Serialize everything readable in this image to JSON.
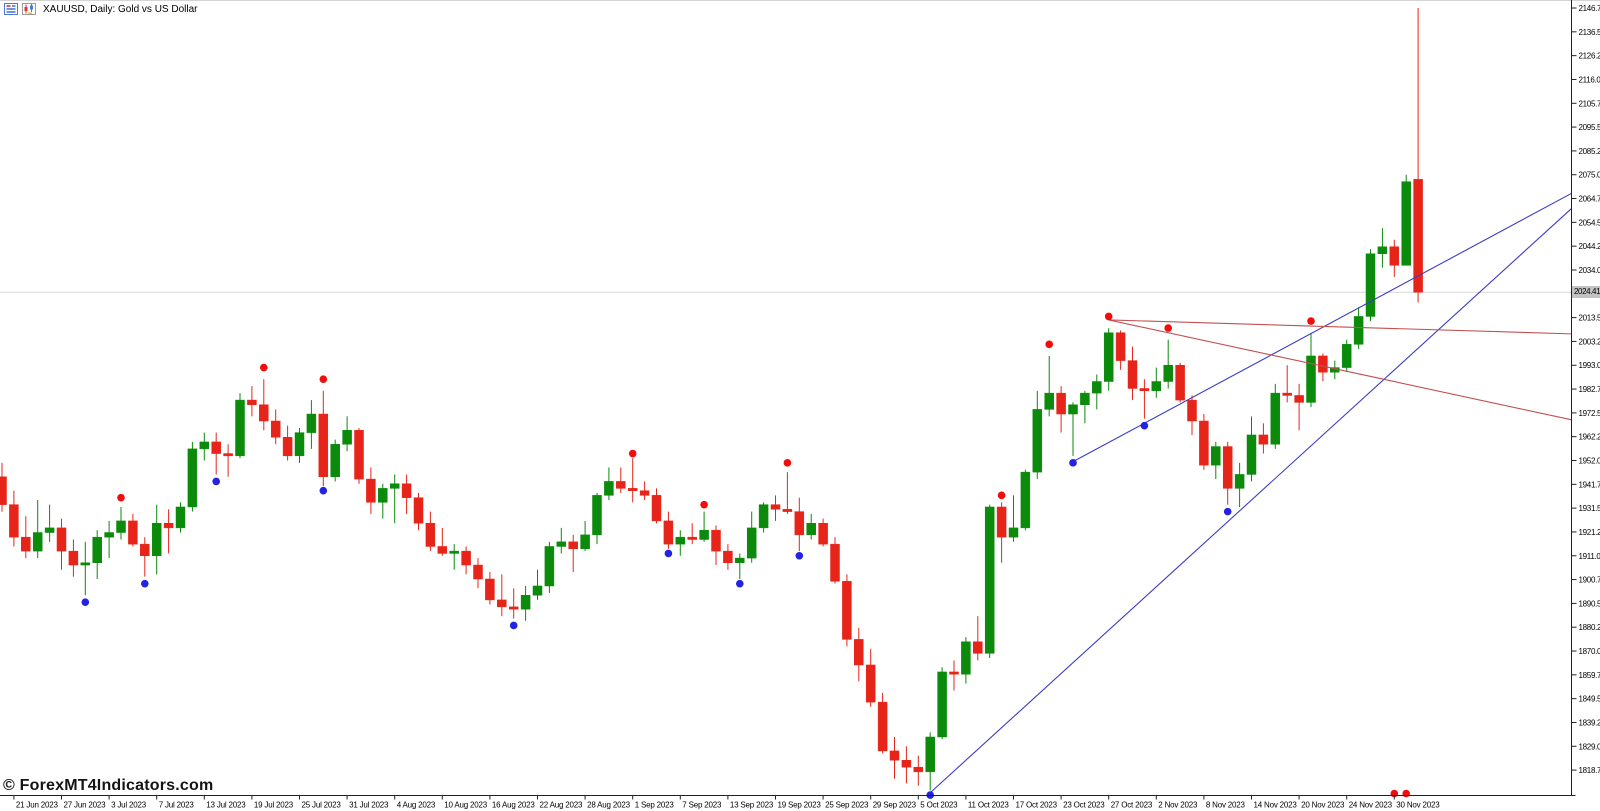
{
  "header": {
    "title": "XAUUSD, Daily:  Gold vs US Dollar"
  },
  "watermark": "© ForexMT4Indicators.com",
  "colors": {
    "bull": "#0b8a0b",
    "bear": "#e62419",
    "fractal_up_dot": "#f20c0c",
    "fractal_down_dot": "#2323e0",
    "trend_blue": "#3c3cc6",
    "trend_red": "#c25050",
    "bid_line": "#d7d7d7",
    "price_tag_bg": "#c3c3c3",
    "axis_line": "#222222",
    "top_border": "#d4d4d4"
  },
  "axes": {
    "current_price": "2024.41",
    "price_step": 10.25,
    "price_range_low": "1818.75",
    "price_range_high": "2146.75",
    "price_ticks": [
      "2146.75",
      "2136.50",
      "2126.25",
      "2116.00",
      "2105.75",
      "2095.50",
      "2085.25",
      "2075.00",
      "2064.75",
      "2054.50",
      "2044.25",
      "2034.00",
      "2013.50",
      "2003.25",
      "1993.00",
      "1982.75",
      "1972.50",
      "1962.25",
      "1952.00",
      "1941.75",
      "1931.50",
      "1921.25",
      "1911.00",
      "1900.75",
      "1890.50",
      "1880.25",
      "1870.00",
      "1859.75",
      "1849.50",
      "1839.25",
      "1829.00",
      "1818.75"
    ],
    "date_labels": [
      "21 Jun 2023",
      "27 Jun 2023",
      "3 Jul 2023",
      "7 Jul 2023",
      "13 Jul 2023",
      "19 Jul 2023",
      "25 Jul 2023",
      "31 Jul 2023",
      "4 Aug 2023",
      "10 Aug 2023",
      "16 Aug 2023",
      "22 Aug 2023",
      "28 Aug 2023",
      "1 Sep 2023",
      "7 Sep 2023",
      "13 Sep 2023",
      "19 Sep 2023",
      "25 Sep 2023",
      "29 Sep 2023",
      "5 Oct 2023",
      "11 Oct 2023",
      "17 Oct 2023",
      "23 Oct 2023",
      "27 Oct 2023",
      "2 Nov 2023",
      "8 Nov 2023",
      "14 Nov 2023",
      "20 Nov 2023",
      "24 Nov 2023",
      "30 Nov 2023"
    ]
  },
  "chart_data": {
    "type": "candlestick",
    "symbol": "XAUUSD",
    "timeframe": "Daily",
    "description": "Gold vs US Dollar",
    "grid": "off",
    "bid_price": 2024.41,
    "candles": [
      [
        "20 Jun 2023",
        1945,
        1951,
        1930,
        1933
      ],
      [
        "21 Jun 2023",
        1933,
        1939,
        1915,
        1919
      ],
      [
        "22 Jun 2023",
        1919,
        1928,
        1910,
        1913
      ],
      [
        "23 Jun 2023",
        1913,
        1935,
        1910,
        1921
      ],
      [
        "26 Jun 2023",
        1921,
        1933,
        1917,
        1923
      ],
      [
        "27 Jun 2023",
        1923,
        1927,
        1905,
        1913
      ],
      [
        "28 Jun 2023",
        1913,
        1918,
        1902,
        1907
      ],
      [
        "29 Jun 2023",
        1907,
        1917,
        1894,
        1908
      ],
      [
        "30 Jun 2023",
        1908,
        1922,
        1901,
        1919
      ],
      [
        "3 Jul 2023",
        1919,
        1926,
        1910,
        1921
      ],
      [
        "4 Jul 2023",
        1921,
        1932,
        1918,
        1926
      ],
      [
        "5 Jul 2023",
        1926,
        1929,
        1915,
        1916
      ],
      [
        "6 Jul 2023",
        1916,
        1919,
        1902,
        1911
      ],
      [
        "7 Jul 2023",
        1911,
        1933,
        1903,
        1925
      ],
      [
        "10 Jul 2023",
        1925,
        1931,
        1912,
        1923
      ],
      [
        "11 Jul 2023",
        1923,
        1934,
        1921,
        1932
      ],
      [
        "12 Jul 2023",
        1932,
        1960,
        1930,
        1957
      ],
      [
        "13 Jul 2023",
        1957,
        1964,
        1952,
        1960
      ],
      [
        "14 Jul 2023",
        1960,
        1964,
        1946,
        1955
      ],
      [
        "17 Jul 2023",
        1955,
        1959,
        1945,
        1954
      ],
      [
        "18 Jul 2023",
        1954,
        1981,
        1953,
        1978
      ],
      [
        "19 Jul 2023",
        1978,
        1984,
        1971,
        1976
      ],
      [
        "20 Jul 2023",
        1976,
        1987,
        1965,
        1969
      ],
      [
        "21 Jul 2023",
        1969,
        1974,
        1959,
        1962
      ],
      [
        "24 Jul 2023",
        1962,
        1967,
        1952,
        1954
      ],
      [
        "25 Jul 2023",
        1954,
        1966,
        1951,
        1964
      ],
      [
        "26 Jul 2023",
        1964,
        1978,
        1957,
        1972
      ],
      [
        "27 Jul 2023",
        1972,
        1982,
        1941,
        1945
      ],
      [
        "28 Jul 2023",
        1945,
        1961,
        1943,
        1959
      ],
      [
        "31 Jul 2023",
        1959,
        1971,
        1956,
        1965
      ],
      [
        "1 Aug 2023",
        1965,
        1966,
        1942,
        1944
      ],
      [
        "2 Aug 2023",
        1944,
        1949,
        1929,
        1934
      ],
      [
        "3 Aug 2023",
        1934,
        1942,
        1927,
        1940
      ],
      [
        "4 Aug 2023",
        1940,
        1946,
        1925,
        1942
      ],
      [
        "7 Aug 2023",
        1942,
        1946,
        1929,
        1936
      ],
      [
        "8 Aug 2023",
        1936,
        1938,
        1922,
        1925
      ],
      [
        "9 Aug 2023",
        1925,
        1930,
        1913,
        1915
      ],
      [
        "10 Aug 2023",
        1915,
        1923,
        1911,
        1912
      ],
      [
        "11 Aug 2023",
        1912,
        1916,
        1905,
        1913
      ],
      [
        "14 Aug 2023",
        1913,
        1915,
        1903,
        1907
      ],
      [
        "15 Aug 2023",
        1907,
        1910,
        1897,
        1901
      ],
      [
        "16 Aug 2023",
        1901,
        1904,
        1890,
        1892
      ],
      [
        "17 Aug 2023",
        1892,
        1903,
        1885,
        1889
      ],
      [
        "18 Aug 2023",
        1889,
        1897,
        1884,
        1888
      ],
      [
        "21 Aug 2023",
        1888,
        1898,
        1883,
        1894
      ],
      [
        "22 Aug 2023",
        1894,
        1905,
        1892,
        1898
      ],
      [
        "23 Aug 2023",
        1898,
        1917,
        1895,
        1915
      ],
      [
        "24 Aug 2023",
        1915,
        1923,
        1912,
        1917
      ],
      [
        "25 Aug 2023",
        1917,
        1920,
        1904,
        1914
      ],
      [
        "28 Aug 2023",
        1914,
        1926,
        1913,
        1920
      ],
      [
        "29 Aug 2023",
        1920,
        1938,
        1916,
        1937
      ],
      [
        "30 Aug 2023",
        1937,
        1949,
        1935,
        1943
      ],
      [
        "31 Aug 2023",
        1943,
        1949,
        1938,
        1940
      ],
      [
        "1 Sep 2023",
        1940,
        1953,
        1934,
        1939
      ],
      [
        "4 Sep 2023",
        1939,
        1943,
        1935,
        1937
      ],
      [
        "5 Sep 2023",
        1937,
        1940,
        1925,
        1926
      ],
      [
        "6 Sep 2023",
        1926,
        1930,
        1914,
        1916
      ],
      [
        "7 Sep 2023",
        1916,
        1922,
        1911,
        1919
      ],
      [
        "8 Sep 2023",
        1919,
        1925,
        1916,
        1918
      ],
      [
        "11 Sep 2023",
        1918,
        1930,
        1917,
        1922
      ],
      [
        "12 Sep 2023",
        1922,
        1924,
        1907,
        1913
      ],
      [
        "13 Sep 2023",
        1913,
        1916,
        1905,
        1908
      ],
      [
        "14 Sep 2023",
        1908,
        1912,
        1901,
        1910
      ],
      [
        "15 Sep 2023",
        1910,
        1930,
        1908,
        1923
      ],
      [
        "18 Sep 2023",
        1923,
        1934,
        1921,
        1933
      ],
      [
        "19 Sep 2023",
        1933,
        1937,
        1926,
        1931
      ],
      [
        "20 Sep 2023",
        1931,
        1947,
        1929,
        1930
      ],
      [
        "21 Sep 2023",
        1930,
        1936,
        1913,
        1920
      ],
      [
        "22 Sep 2023",
        1920,
        1929,
        1918,
        1925
      ],
      [
        "25 Sep 2023",
        1925,
        1927,
        1915,
        1916
      ],
      [
        "26 Sep 2023",
        1916,
        1919,
        1899,
        1900
      ],
      [
        "27 Sep 2023",
        1900,
        1903,
        1872,
        1875
      ],
      [
        "28 Sep 2023",
        1875,
        1880,
        1857,
        1864
      ],
      [
        "29 Sep 2023",
        1864,
        1871,
        1846,
        1848
      ],
      [
        "2 Oct 2023",
        1848,
        1852,
        1826,
        1827
      ],
      [
        "3 Oct 2023",
        1827,
        1833,
        1815,
        1823
      ],
      [
        "4 Oct 2023",
        1823,
        1829,
        1813,
        1820
      ],
      [
        "5 Oct 2023",
        1820,
        1825,
        1812,
        1818
      ],
      [
        "6 Oct 2023",
        1818,
        1835,
        1810,
        1833
      ],
      [
        "9 Oct 2023",
        1833,
        1863,
        1832,
        1861
      ],
      [
        "10 Oct 2023",
        1861,
        1866,
        1853,
        1860
      ],
      [
        "11 Oct 2023",
        1860,
        1876,
        1856,
        1874
      ],
      [
        "12 Oct 2023",
        1874,
        1885,
        1866,
        1869
      ],
      [
        "13 Oct 2023",
        1869,
        1933,
        1867,
        1932
      ],
      [
        "16 Oct 2023",
        1932,
        1934,
        1908,
        1919
      ],
      [
        "17 Oct 2023",
        1919,
        1937,
        1917,
        1923
      ],
      [
        "18 Oct 2023",
        1923,
        1948,
        1922,
        1947
      ],
      [
        "19 Oct 2023",
        1947,
        1982,
        1944,
        1974
      ],
      [
        "20 Oct 2023",
        1974,
        1997,
        1971,
        1981
      ],
      [
        "23 Oct 2023",
        1981,
        1984,
        1964,
        1972
      ],
      [
        "24 Oct 2023",
        1972,
        1977,
        1954,
        1976
      ],
      [
        "25 Oct 2023",
        1976,
        1982,
        1968,
        1981
      ],
      [
        "26 Oct 2023",
        1981,
        1989,
        1974,
        1986
      ],
      [
        "27 Oct 2023",
        1986,
        2009,
        1982,
        2007
      ],
      [
        "30 Oct 2023",
        2007,
        2008,
        1991,
        1995
      ],
      [
        "31 Oct 2023",
        1995,
        2001,
        1978,
        1983
      ],
      [
        "1 Nov 2023",
        1983,
        1987,
        1970,
        1982
      ],
      [
        "2 Nov 2023",
        1982,
        1992,
        1979,
        1986
      ],
      [
        "3 Nov 2023",
        1986,
        2004,
        1983,
        1993
      ],
      [
        "6 Nov 2023",
        1993,
        1994,
        1977,
        1978
      ],
      [
        "7 Nov 2023",
        1978,
        1980,
        1963,
        1969
      ],
      [
        "8 Nov 2023",
        1969,
        1972,
        1948,
        1950
      ],
      [
        "9 Nov 2023",
        1950,
        1960,
        1944,
        1958
      ],
      [
        "10 Nov 2023",
        1958,
        1960,
        1933,
        1940
      ],
      [
        "13 Nov 2023",
        1940,
        1951,
        1932,
        1946
      ],
      [
        "14 Nov 2023",
        1946,
        1971,
        1943,
        1963
      ],
      [
        "15 Nov 2023",
        1963,
        1968,
        1955,
        1959
      ],
      [
        "16 Nov 2023",
        1959,
        1985,
        1957,
        1981
      ],
      [
        "17 Nov 2023",
        1981,
        1993,
        1977,
        1980
      ],
      [
        "20 Nov 2023",
        1980,
        1985,
        1965,
        1977
      ],
      [
        "21 Nov 2023",
        1977,
        2007,
        1975,
        1997
      ],
      [
        "22 Nov 2023",
        1997,
        1998,
        1986,
        1990
      ],
      [
        "23 Nov 2023",
        1990,
        1995,
        1987,
        1992
      ],
      [
        "24 Nov 2023",
        1992,
        2004,
        1990,
        2002
      ],
      [
        "27 Nov 2023",
        2002,
        2018,
        2000,
        2014
      ],
      [
        "28 Nov 2023",
        2014,
        2043,
        2012,
        2041
      ],
      [
        "29 Nov 2023",
        2041,
        2052,
        2035,
        2044
      ],
      [
        "30 Nov 2023",
        2044,
        2047,
        2031,
        2036
      ],
      [
        "1 Dec 2023",
        2036,
        2075,
        2036,
        2072
      ],
      [
        "4 Dec 2023",
        2073,
        2146.75,
        2020,
        2024.41
      ]
    ],
    "fractal_dots": {
      "up": [
        [
          10,
          1936
        ],
        [
          22,
          1992
        ],
        [
          27,
          1987
        ],
        [
          53,
          1955
        ],
        [
          59,
          1933
        ],
        [
          66,
          1951
        ],
        [
          84,
          1937
        ],
        [
          88,
          2002
        ],
        [
          93,
          2014
        ],
        [
          98,
          2009
        ],
        [
          110,
          2012
        ]
      ],
      "down": [
        [
          7,
          1891
        ],
        [
          12,
          1899
        ],
        [
          18,
          1943
        ],
        [
          27,
          1939
        ],
        [
          43,
          1881
        ],
        [
          56,
          1912
        ],
        [
          62,
          1899
        ],
        [
          67,
          1911
        ],
        [
          78,
          1808
        ],
        [
          90,
          1951
        ],
        [
          96,
          1967
        ],
        [
          103,
          1930
        ]
      ],
      "bottom_bars": [
        117,
        118
      ]
    },
    "trendlines": [
      {
        "name": "support-trendline-steep",
        "color": "blue",
        "from_bar": 78,
        "from_price": 1809,
        "to_bar": 131.9,
        "to_price": 2060.5
      },
      {
        "name": "support-trendline-shallow",
        "color": "blue",
        "from_bar": 90,
        "from_price": 1951.5,
        "to_bar": 131.9,
        "to_price": 2067
      },
      {
        "name": "resistance-trendline-flat",
        "color": "red",
        "from_bar": 93,
        "from_price": 2012.5,
        "to_bar": 131.9,
        "to_price": 2006.5
      },
      {
        "name": "resistance-trendline-steep",
        "color": "red",
        "from_bar": 93,
        "from_price": 2012.5,
        "to_bar": 131.9,
        "to_price": 1969.5
      }
    ]
  }
}
